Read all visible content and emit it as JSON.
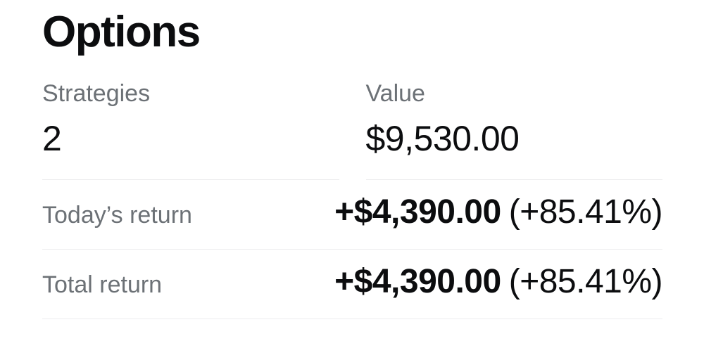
{
  "panel": {
    "title": "Options",
    "summary": {
      "strategies": {
        "label": "Strategies",
        "value": "2"
      },
      "value": {
        "label": "Value",
        "value": "$9,530.00"
      }
    },
    "rows": [
      {
        "label": "Today’s return",
        "amount": "+$4,390.00",
        "percent": "(+85.41%)"
      },
      {
        "label": "Total return",
        "amount": "+$4,390.00",
        "percent": "(+85.41%)"
      }
    ]
  },
  "colors": {
    "text": "#0c0d0f",
    "muted": "#6c7176",
    "divider": "#ececee",
    "background": "#ffffff"
  }
}
